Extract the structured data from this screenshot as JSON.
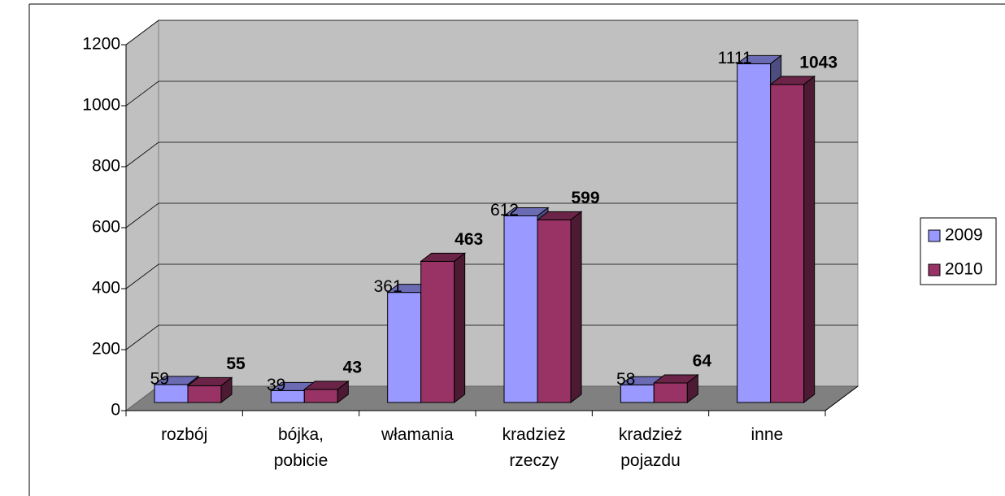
{
  "chart_data": {
    "type": "bar3d",
    "categories": [
      "rozbój",
      "bójka, pobicie",
      "włamania",
      "kradzież rzeczy",
      "kradzież pojazdu",
      "inne"
    ],
    "series": [
      {
        "name": "2009",
        "color": "#9999ff",
        "values": [
          59,
          39,
          361,
          612,
          58,
          1111
        ]
      },
      {
        "name": "2010",
        "color": "#993366",
        "values": [
          55,
          43,
          463,
          599,
          64,
          1043
        ]
      }
    ],
    "ylim": [
      0,
      1200
    ],
    "yticks": [
      0,
      200,
      400,
      600,
      800,
      1000,
      1200
    ],
    "grid": true,
    "legend": "right"
  }
}
